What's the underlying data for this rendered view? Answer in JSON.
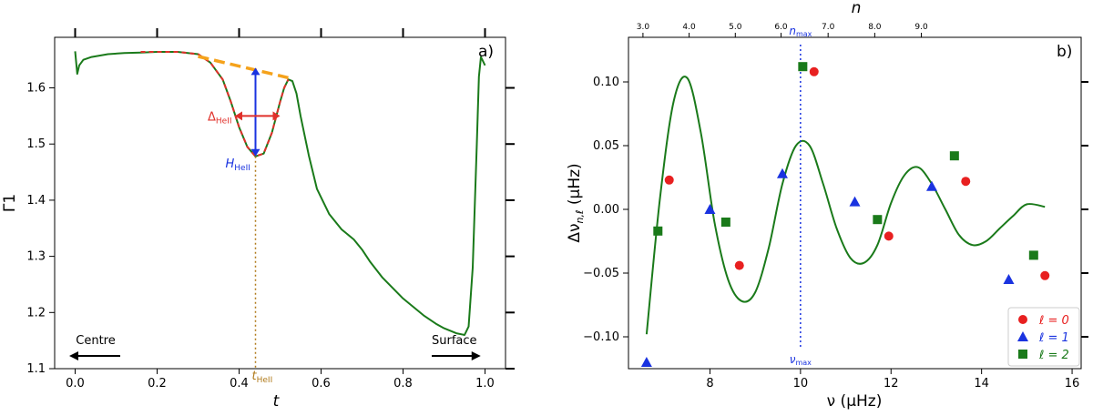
{
  "chart_data": [
    {
      "type": "line",
      "panel_label": "a)",
      "xlabel": "t",
      "ylabel": "Γ1",
      "xlim": [
        -0.05,
        1.05
      ],
      "ylim": [
        1.1,
        1.69
      ],
      "xticks": [
        0.0,
        0.2,
        0.4,
        0.6,
        0.8,
        1.0
      ],
      "xtick_labels": [
        "0.0",
        "0.2",
        "0.4",
        "0.6",
        "0.8",
        "1.0"
      ],
      "yticks": [
        1.1,
        1.2,
        1.3,
        1.4,
        1.5,
        1.6
      ],
      "ytick_labels": [
        "1.1",
        "1.2",
        "1.3",
        "1.4",
        "1.5",
        "1.6"
      ],
      "series": [
        {
          "color": "#1a7a1a",
          "style": "solid",
          "x": [
            0.0,
            0.005,
            0.01,
            0.02,
            0.04,
            0.08,
            0.12,
            0.16,
            0.2,
            0.25,
            0.3,
            0.33,
            0.36,
            0.38,
            0.4,
            0.42,
            0.44,
            0.46,
            0.48,
            0.5,
            0.51,
            0.52,
            0.53,
            0.54,
            0.55,
            0.57,
            0.59,
            0.62,
            0.65,
            0.68,
            0.7,
            0.72,
            0.75,
            0.8,
            0.85,
            0.88,
            0.9,
            0.93,
            0.95,
            0.96,
            0.97,
            0.98,
            0.985,
            0.99,
            1.0
          ],
          "y": [
            1.665,
            1.625,
            1.64,
            1.65,
            1.655,
            1.66,
            1.662,
            1.663,
            1.664,
            1.664,
            1.66,
            1.645,
            1.615,
            1.575,
            1.53,
            1.495,
            1.478,
            1.483,
            1.52,
            1.575,
            1.6,
            1.615,
            1.612,
            1.59,
            1.55,
            1.48,
            1.42,
            1.375,
            1.348,
            1.33,
            1.312,
            1.29,
            1.262,
            1.225,
            1.195,
            1.18,
            1.172,
            1.163,
            1.16,
            1.175,
            1.28,
            1.5,
            1.62,
            1.655,
            1.64
          ]
        },
        {
          "color": "#e0302a",
          "style": "dashed",
          "x": [
            0.16,
            0.2,
            0.25,
            0.3,
            0.33,
            0.36,
            0.38,
            0.4,
            0.42,
            0.44,
            0.46,
            0.48,
            0.5,
            0.51,
            0.52
          ],
          "y": [
            1.664,
            1.664,
            1.664,
            1.66,
            1.645,
            1.615,
            1.575,
            1.53,
            1.495,
            1.478,
            1.483,
            1.52,
            1.575,
            1.6,
            1.615
          ]
        },
        {
          "color": "#f5a21b",
          "style": "dashed",
          "x": [
            0.3,
            0.52
          ],
          "y": [
            1.656,
            1.618
          ]
        }
      ],
      "annotations": {
        "delta_label": "Δ",
        "delta_sub": "HeII",
        "h_label": "H",
        "h_sub": "HeII",
        "t_label": "t",
        "t_sub": "HeII",
        "centre": "Centre",
        "surface": "Surface",
        "t_heii": 0.44,
        "delta_x": [
          0.39,
          0.5
        ],
        "delta_y": 1.55,
        "h_y": [
          1.478,
          1.636
        ]
      }
    },
    {
      "type": "scatter",
      "panel_label": "b)",
      "xlabel": "ν (μHz)",
      "ylabel": "Δν",
      "ylabel_sub": "n,ℓ",
      "ylabel_unit": " (μHz)",
      "top_label": "n",
      "xlim": [
        6.2,
        16.2
      ],
      "ylim": [
        -0.125,
        0.135
      ],
      "xticks": [
        8,
        10,
        12,
        14,
        16
      ],
      "xtick_labels": [
        "8",
        "10",
        "12",
        "14",
        "16"
      ],
      "yticks": [
        -0.1,
        -0.05,
        0.0,
        0.05,
        0.1
      ],
      "ytick_labels": [
        "−0.10",
        "−0.05",
        "0.00",
        "0.05",
        "0.10"
      ],
      "top_ticks_nu": [
        6.6,
        8.0,
        9.35,
        10.7,
        12.05,
        13.4,
        14.75,
        16.1
      ],
      "top_tick_labels": [
        "3.0",
        "4.0",
        "5.0",
        "6.0",
        "7.0",
        "8.0",
        "9.0"
      ],
      "top_label_nu": [
        6.52,
        7.54,
        8.56,
        9.57,
        10.61,
        11.64,
        12.67,
        16.1
      ],
      "vline": {
        "x": 10.0,
        "top": "n",
        "top_sub": "max",
        "bottom": "ν",
        "bottom_sub": "max"
      },
      "fit_curve": {
        "color": "#1a7a1a",
        "x": [
          6.6,
          6.9,
          7.2,
          7.5,
          7.8,
          8.1,
          8.4,
          8.7,
          9.0,
          9.3,
          9.6,
          9.9,
          10.2,
          10.5,
          10.8,
          11.1,
          11.4,
          11.7,
          12.0,
          12.3,
          12.6,
          12.9,
          13.2,
          13.5,
          13.8,
          14.1,
          14.4,
          14.7,
          15.0,
          15.4
        ],
        "y": [
          -0.098,
          0.01,
          0.085,
          0.103,
          0.06,
          -0.01,
          -0.055,
          -0.072,
          -0.065,
          -0.03,
          0.02,
          0.05,
          0.05,
          0.02,
          -0.015,
          -0.038,
          -0.042,
          -0.028,
          0.005,
          0.027,
          0.033,
          0.02,
          0.0,
          -0.02,
          -0.028,
          -0.025,
          -0.015,
          -0.005,
          0.004,
          0.002
        ]
      },
      "series": [
        {
          "name": "ℓ = 0",
          "marker": "circle",
          "color": "#e82020",
          "x": [
            7.1,
            8.65,
            10.3,
            11.95,
            13.65,
            15.4
          ],
          "y": [
            0.023,
            -0.044,
            0.108,
            -0.021,
            0.022,
            -0.052
          ]
        },
        {
          "name": "ℓ = 1",
          "marker": "triangle",
          "color": "#1a33e0",
          "x": [
            6.6,
            8.0,
            9.6,
            11.2,
            12.9,
            14.6
          ],
          "y": [
            -0.12,
            0.0,
            0.028,
            0.006,
            0.018,
            -0.055
          ]
        },
        {
          "name": "ℓ = 2",
          "marker": "square",
          "color": "#1a7a1a",
          "x": [
            6.85,
            8.35,
            10.05,
            11.7,
            13.4,
            15.15
          ],
          "y": [
            -0.017,
            -0.01,
            0.112,
            -0.008,
            0.042,
            -0.036
          ]
        }
      ],
      "legend": {
        "placement": "bottom-right"
      }
    }
  ]
}
